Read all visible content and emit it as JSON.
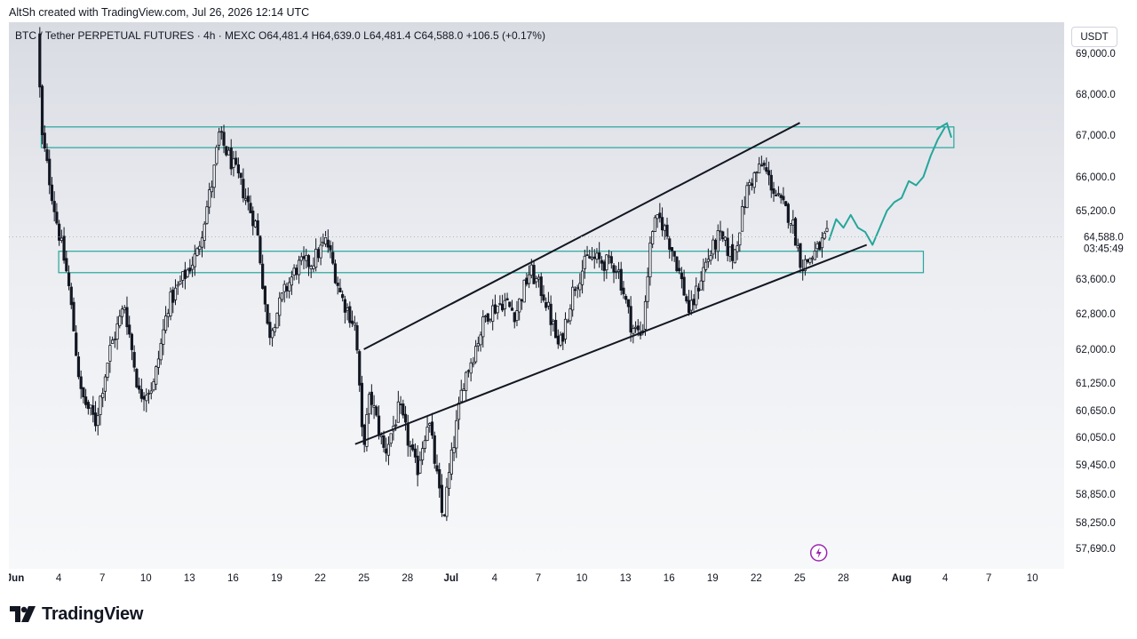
{
  "credit": "AltSh created with TradingView.com, Jul 26, 2026 12:14 UTC",
  "symbol": {
    "name": "BTC / Tether PERPETUAL FUTURES",
    "interval": "4h",
    "exchange": "MEXC",
    "line": "BTC / Tether PERPETUAL FUTURES · 4h · MEXC  O64,481.4  H64,639.0  L64,481.4  C64,588.0  +106.5 (+0.17%)"
  },
  "currency_button": "USDT",
  "brand": "TradingView",
  "last_price": {
    "price": "64,588.0",
    "countdown": "03:45:49"
  },
  "colors": {
    "accent": "#26a69a",
    "candle": "#131722",
    "bg": "#ffffff"
  },
  "chart_data": {
    "type": "candlestick",
    "y_axis": {
      "ticks": [
        {
          "value": 69000,
          "label": "69,000.0"
        },
        {
          "value": 68000,
          "label": "68,000.0"
        },
        {
          "value": 67000,
          "label": "67,000.0"
        },
        {
          "value": 66000,
          "label": "66,000.0"
        },
        {
          "value": 65200,
          "label": "65,200.0"
        },
        {
          "value": 63600,
          "label": "63,600.0"
        },
        {
          "value": 62800,
          "label": "62,800.0"
        },
        {
          "value": 62000,
          "label": "62,000.0"
        },
        {
          "value": 61250,
          "label": "61,250.0"
        },
        {
          "value": 60650,
          "label": "60,650.0"
        },
        {
          "value": 60050,
          "label": "60,050.0"
        },
        {
          "value": 59450,
          "label": "59,450.0"
        },
        {
          "value": 58850,
          "label": "58,850.0"
        },
        {
          "value": 58250,
          "label": "58,250.0"
        },
        {
          "value": 57690,
          "label": "57,690.0"
        }
      ]
    },
    "x_axis": {
      "ticks": [
        {
          "day": 0,
          "label": "Jun"
        },
        {
          "day": 3,
          "label": "4"
        },
        {
          "day": 6,
          "label": "7"
        },
        {
          "day": 9,
          "label": "10"
        },
        {
          "day": 12,
          "label": "13"
        },
        {
          "day": 15,
          "label": "16"
        },
        {
          "day": 18,
          "label": "19"
        },
        {
          "day": 21,
          "label": "22"
        },
        {
          "day": 24,
          "label": "25"
        },
        {
          "day": 27,
          "label": "28"
        },
        {
          "day": 30,
          "label": "Jul"
        },
        {
          "day": 33,
          "label": "4"
        },
        {
          "day": 36,
          "label": "7"
        },
        {
          "day": 39,
          "label": "10"
        },
        {
          "day": 42,
          "label": "13"
        },
        {
          "day": 45,
          "label": "16"
        },
        {
          "day": 48,
          "label": "19"
        },
        {
          "day": 51,
          "label": "22"
        },
        {
          "day": 54,
          "label": "25"
        },
        {
          "day": 57,
          "label": "28"
        },
        {
          "day": 61,
          "label": "Aug"
        },
        {
          "day": 64,
          "label": "4"
        },
        {
          "day": 67,
          "label": "7"
        },
        {
          "day": 70,
          "label": "10"
        }
      ]
    },
    "path_keypoints": [
      {
        "day": 1.7,
        "price": 69500
      },
      {
        "day": 2.0,
        "price": 67000
      },
      {
        "day": 3.0,
        "price": 65000
      },
      {
        "day": 3.8,
        "price": 63600
      },
      {
        "day": 4.7,
        "price": 61000
      },
      {
        "day": 5.7,
        "price": 60400
      },
      {
        "day": 6.7,
        "price": 62000
      },
      {
        "day": 7.7,
        "price": 63000
      },
      {
        "day": 8.7,
        "price": 61000
      },
      {
        "day": 9.7,
        "price": 61200
      },
      {
        "day": 10.7,
        "price": 63000
      },
      {
        "day": 12.7,
        "price": 64200
      },
      {
        "day": 13.8,
        "price": 66000
      },
      {
        "day": 14.2,
        "price": 67000
      },
      {
        "day": 15.5,
        "price": 66000
      },
      {
        "day": 16.8,
        "price": 64800
      },
      {
        "day": 17.6,
        "price": 62300
      },
      {
        "day": 18.7,
        "price": 63300
      },
      {
        "day": 19.6,
        "price": 63900
      },
      {
        "day": 20.6,
        "price": 64000
      },
      {
        "day": 21.6,
        "price": 64500
      },
      {
        "day": 22.6,
        "price": 63200
      },
      {
        "day": 23.6,
        "price": 62500
      },
      {
        "day": 24.1,
        "price": 59800
      },
      {
        "day": 24.6,
        "price": 61000
      },
      {
        "day": 25.6,
        "price": 59700
      },
      {
        "day": 26.6,
        "price": 60700
      },
      {
        "day": 27.8,
        "price": 59300
      },
      {
        "day": 28.6,
        "price": 60500
      },
      {
        "day": 29.6,
        "price": 58300
      },
      {
        "day": 30.3,
        "price": 59800
      },
      {
        "day": 31.0,
        "price": 61300
      },
      {
        "day": 31.6,
        "price": 61800
      },
      {
        "day": 32.6,
        "price": 62800
      },
      {
        "day": 33.8,
        "price": 63100
      },
      {
        "day": 34.6,
        "price": 62800
      },
      {
        "day": 35.6,
        "price": 63800
      },
      {
        "day": 36.6,
        "price": 63200
      },
      {
        "day": 37.6,
        "price": 62000
      },
      {
        "day": 38.6,
        "price": 63400
      },
      {
        "day": 39.6,
        "price": 64100
      },
      {
        "day": 40.6,
        "price": 64000
      },
      {
        "day": 41.6,
        "price": 63900
      },
      {
        "day": 42.6,
        "price": 62500
      },
      {
        "day": 43.3,
        "price": 62300
      },
      {
        "day": 44.0,
        "price": 64800
      },
      {
        "day": 44.6,
        "price": 65000
      },
      {
        "day": 45.6,
        "price": 64100
      },
      {
        "day": 46.6,
        "price": 62800
      },
      {
        "day": 47.6,
        "price": 63900
      },
      {
        "day": 48.6,
        "price": 64600
      },
      {
        "day": 49.6,
        "price": 64100
      },
      {
        "day": 50.6,
        "price": 65800
      },
      {
        "day": 51.6,
        "price": 66300
      },
      {
        "day": 52.6,
        "price": 65500
      },
      {
        "day": 53.6,
        "price": 65000
      },
      {
        "day": 54.3,
        "price": 63900
      },
      {
        "day": 55.2,
        "price": 64200
      },
      {
        "day": 56.0,
        "price": 64600
      }
    ],
    "annotations": {
      "zones": [
        {
          "from_day": 1.8,
          "to_day": 64.6,
          "price_low": 66700,
          "price_high": 67200
        },
        {
          "from_day": 3.0,
          "to_day": 62.5,
          "price_low": 63750,
          "price_high": 64250
        }
      ],
      "channel_upper": [
        {
          "day": 24.0,
          "price": 62000
        },
        {
          "day": 54.0,
          "price": 67300
        }
      ],
      "channel_lower": [
        {
          "day": 23.4,
          "price": 59900
        },
        {
          "day": 58.6,
          "price": 64400
        }
      ],
      "projection": [
        {
          "day": 56.0,
          "price": 64500
        },
        {
          "day": 56.5,
          "price": 65000
        },
        {
          "day": 57.0,
          "price": 64800
        },
        {
          "day": 57.5,
          "price": 65100
        },
        {
          "day": 58.0,
          "price": 64800
        },
        {
          "day": 58.5,
          "price": 64700
        },
        {
          "day": 59.0,
          "price": 64400
        },
        {
          "day": 59.5,
          "price": 64800
        },
        {
          "day": 60.0,
          "price": 65200
        },
        {
          "day": 60.5,
          "price": 65400
        },
        {
          "day": 61.0,
          "price": 65500
        },
        {
          "day": 61.5,
          "price": 65900
        },
        {
          "day": 62.0,
          "price": 65800
        },
        {
          "day": 62.5,
          "price": 66000
        },
        {
          "day": 63.0,
          "price": 66500
        },
        {
          "day": 63.5,
          "price": 66900
        },
        {
          "day": 64.0,
          "price": 67200
        }
      ]
    }
  }
}
